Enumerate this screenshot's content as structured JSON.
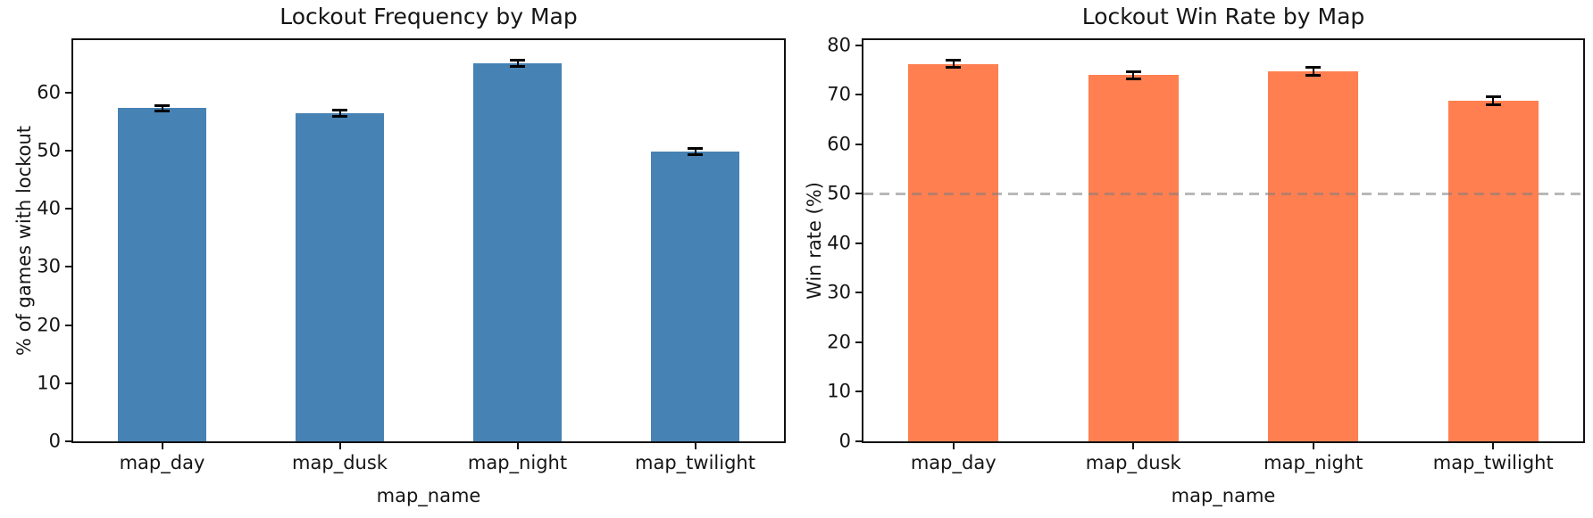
{
  "figure": {
    "background": "#ffffff",
    "text_color": "#151515"
  },
  "chart_data": [
    {
      "type": "bar",
      "title": "Lockout Frequency by Map",
      "xlabel": "map_name",
      "ylabel": "% of games with lockout",
      "categories": [
        "map_day",
        "map_dusk",
        "map_night",
        "map_twilight"
      ],
      "values": [
        57.3,
        56.4,
        65.0,
        49.8
      ],
      "errors": [
        0.5,
        0.5,
        0.5,
        0.5
      ],
      "bar_color": "#4682B4",
      "ylim": [
        0,
        69
      ],
      "yticks": [
        0,
        10,
        20,
        30,
        40,
        50,
        60
      ],
      "grid": false,
      "legend": null,
      "ref_line": null
    },
    {
      "type": "bar",
      "title": "Lockout Win Rate by Map",
      "xlabel": "map_name",
      "ylabel": "Win rate (%)",
      "categories": [
        "map_day",
        "map_dusk",
        "map_night",
        "map_twilight"
      ],
      "values": [
        76.2,
        73.9,
        74.7,
        68.7
      ],
      "errors": [
        0.7,
        0.8,
        0.8,
        0.8
      ],
      "bar_color": "#FF7F50",
      "ylim": [
        0,
        81
      ],
      "yticks": [
        0,
        10,
        20,
        30,
        40,
        50,
        60,
        70,
        80
      ],
      "grid": false,
      "legend": null,
      "ref_line": {
        "y": 50,
        "color": "rgba(125,125,125,0.55)",
        "style": "dashed"
      }
    }
  ]
}
